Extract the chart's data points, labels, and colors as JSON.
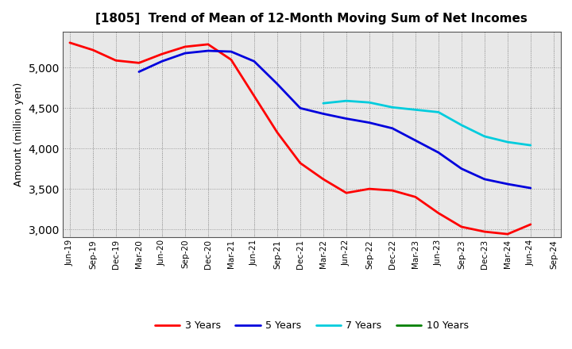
{
  "title": "[1805]  Trend of Mean of 12-Month Moving Sum of Net Incomes",
  "ylabel": "Amount (million yen)",
  "background_color": "#ffffff",
  "grid_color": "#999999",
  "tick_labels": [
    "Jun-19",
    "Sep-19",
    "Dec-19",
    "Mar-20",
    "Jun-20",
    "Sep-20",
    "Dec-20",
    "Mar-21",
    "Jun-21",
    "Sep-21",
    "Dec-21",
    "Mar-22",
    "Jun-22",
    "Sep-22",
    "Dec-22",
    "Mar-23",
    "Jun-23",
    "Sep-23",
    "Dec-23",
    "Mar-24",
    "Jun-24",
    "Sep-24"
  ],
  "series": {
    "3 Years": {
      "color": "#ff0000",
      "linewidth": 2.0,
      "data": [
        5310,
        5220,
        5090,
        5060,
        5170,
        5260,
        5290,
        5100,
        4650,
        4200,
        3820,
        3620,
        3450,
        3500,
        3480,
        3400,
        3200,
        3030,
        2970,
        2940,
        3060,
        null
      ]
    },
    "5 Years": {
      "color": "#0000dd",
      "linewidth": 2.0,
      "data": [
        null,
        null,
        null,
        4950,
        5080,
        5180,
        5210,
        5200,
        5080,
        4800,
        4500,
        4430,
        4370,
        4320,
        4250,
        4100,
        3950,
        3750,
        3620,
        3560,
        3510,
        null
      ]
    },
    "7 Years": {
      "color": "#00ccdd",
      "linewidth": 2.0,
      "data": [
        null,
        null,
        null,
        null,
        null,
        null,
        null,
        null,
        null,
        null,
        null,
        4560,
        4590,
        4570,
        4510,
        4480,
        4450,
        4290,
        4150,
        4080,
        4040,
        null
      ]
    },
    "10 Years": {
      "color": "#008000",
      "linewidth": 2.0,
      "data": [
        null,
        null,
        null,
        null,
        null,
        null,
        null,
        null,
        null,
        null,
        null,
        null,
        null,
        null,
        null,
        null,
        null,
        null,
        null,
        null,
        null,
        null
      ]
    }
  },
  "ylim": [
    2900,
    5450
  ],
  "yticks": [
    3000,
    3500,
    4000,
    4500,
    5000
  ],
  "plot_bgcolor": "#e8e8e8"
}
